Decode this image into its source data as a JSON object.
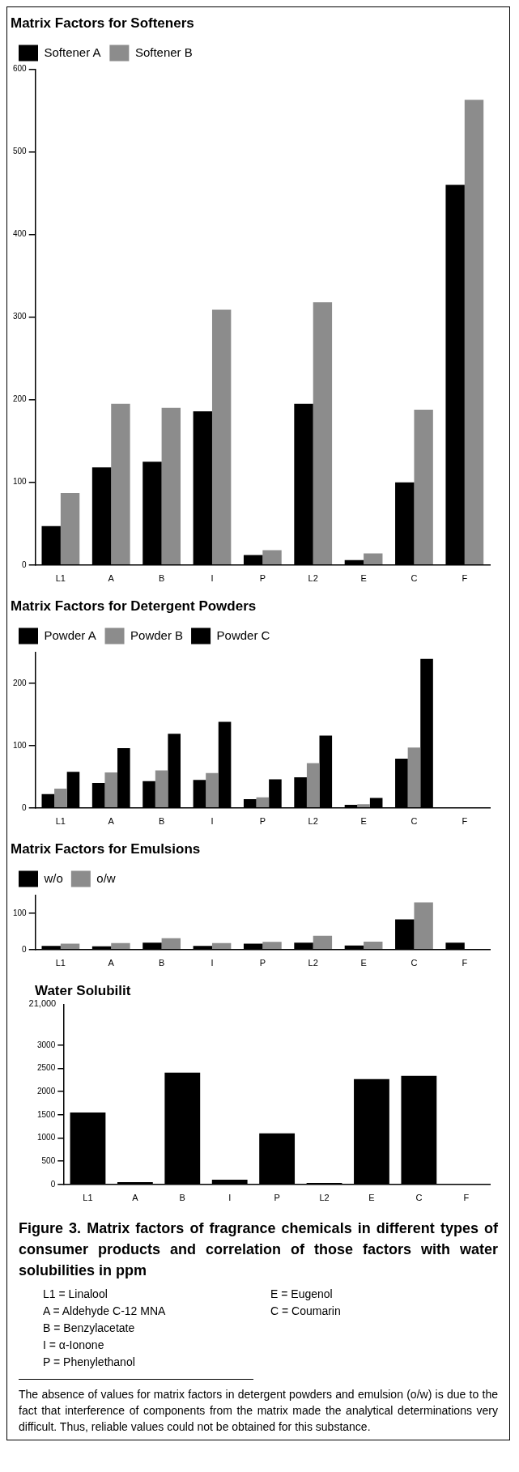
{
  "chart_data": [
    {
      "type": "bar",
      "title": "Matrix Factors for Softeners",
      "categories": [
        "L1",
        "A",
        "B",
        "I",
        "P",
        "L2",
        "E",
        "C",
        "F"
      ],
      "ylim": [
        0,
        600
      ],
      "yticks": [
        0,
        100,
        200,
        300,
        400,
        500,
        600
      ],
      "legend": "top left",
      "series": [
        {
          "name": "Softener A",
          "color": "#000000",
          "values": [
            47,
            118,
            125,
            186,
            12,
            195,
            6,
            100,
            460
          ]
        },
        {
          "name": "Softener B",
          "color": "#8c8c8c",
          "values": [
            87,
            195,
            190,
            309,
            18,
            318,
            14,
            188,
            563
          ]
        }
      ]
    },
    {
      "type": "bar",
      "title": "Matrix Factors for Detergent Powders",
      "categories": [
        "L1",
        "A",
        "B",
        "I",
        "P",
        "L2",
        "E",
        "C",
        "F"
      ],
      "ylim": [
        0,
        250
      ],
      "yticks": [
        0,
        100,
        200
      ],
      "legend": "top left",
      "series": [
        {
          "name": "Powder A",
          "color": "#000000",
          "values": [
            22,
            40,
            43,
            45,
            14,
            49,
            5,
            79,
            null
          ]
        },
        {
          "name": "Powder B",
          "color": "#8c8c8c",
          "values": [
            31,
            57,
            60,
            56,
            17,
            72,
            6,
            97,
            null
          ]
        },
        {
          "name": "Powder C",
          "color": "#000000",
          "values": [
            58,
            96,
            119,
            138,
            46,
            116,
            16,
            239,
            null
          ]
        }
      ]
    },
    {
      "type": "bar",
      "title": "Matrix Factors for Emulsions",
      "categories": [
        "L1",
        "A",
        "B",
        "I",
        "P",
        "L2",
        "E",
        "C",
        "F"
      ],
      "ylim": [
        0,
        150
      ],
      "yticks": [
        0,
        100
      ],
      "legend": "top left",
      "series": [
        {
          "name": "w/o",
          "color": "#000000",
          "values": [
            10,
            9,
            19,
            10,
            16,
            19,
            11,
            83,
            19
          ]
        },
        {
          "name": "o/w",
          "color": "#8c8c8c",
          "values": [
            16,
            18,
            31,
            18,
            21,
            38,
            22,
            130,
            null
          ]
        }
      ]
    },
    {
      "type": "bar",
      "title": "Water Solubilit",
      "categories": [
        "L1",
        "A",
        "B",
        "I",
        "P",
        "L2",
        "E",
        "C",
        "F"
      ],
      "ylim": [
        0,
        3880
      ],
      "yticks": [
        0,
        500,
        1000,
        1500,
        2000,
        2500,
        3000
      ],
      "annotations": [
        "21,000"
      ],
      "series": [
        {
          "color": "#000000",
          "values": [
            1550,
            50,
            2410,
            100,
            1100,
            30,
            2270,
            2340,
            null
          ]
        }
      ]
    },
    {
      "type": "other",
      "title": "Figure 3. Matrix factors of fragrance chemicals in different types of consumer products and correlation of those factors with water solubilities in ppm",
      "annotations": [
        "L1 = Linalool",
        "A = Aldehyde C-12 MNA",
        "B = Benzylacetate",
        "I = α-Ionone",
        "P = Phenylethanol",
        "E = Eugenol",
        "C = Coumarin",
        "The absence of values for matrix factors in detergent powders and emulsion (o/w) is due to the fact that interference of components from the matrix made the analytical determinations very difficult. Thus, reliable values could not be obtained for this substance."
      ]
    }
  ]
}
